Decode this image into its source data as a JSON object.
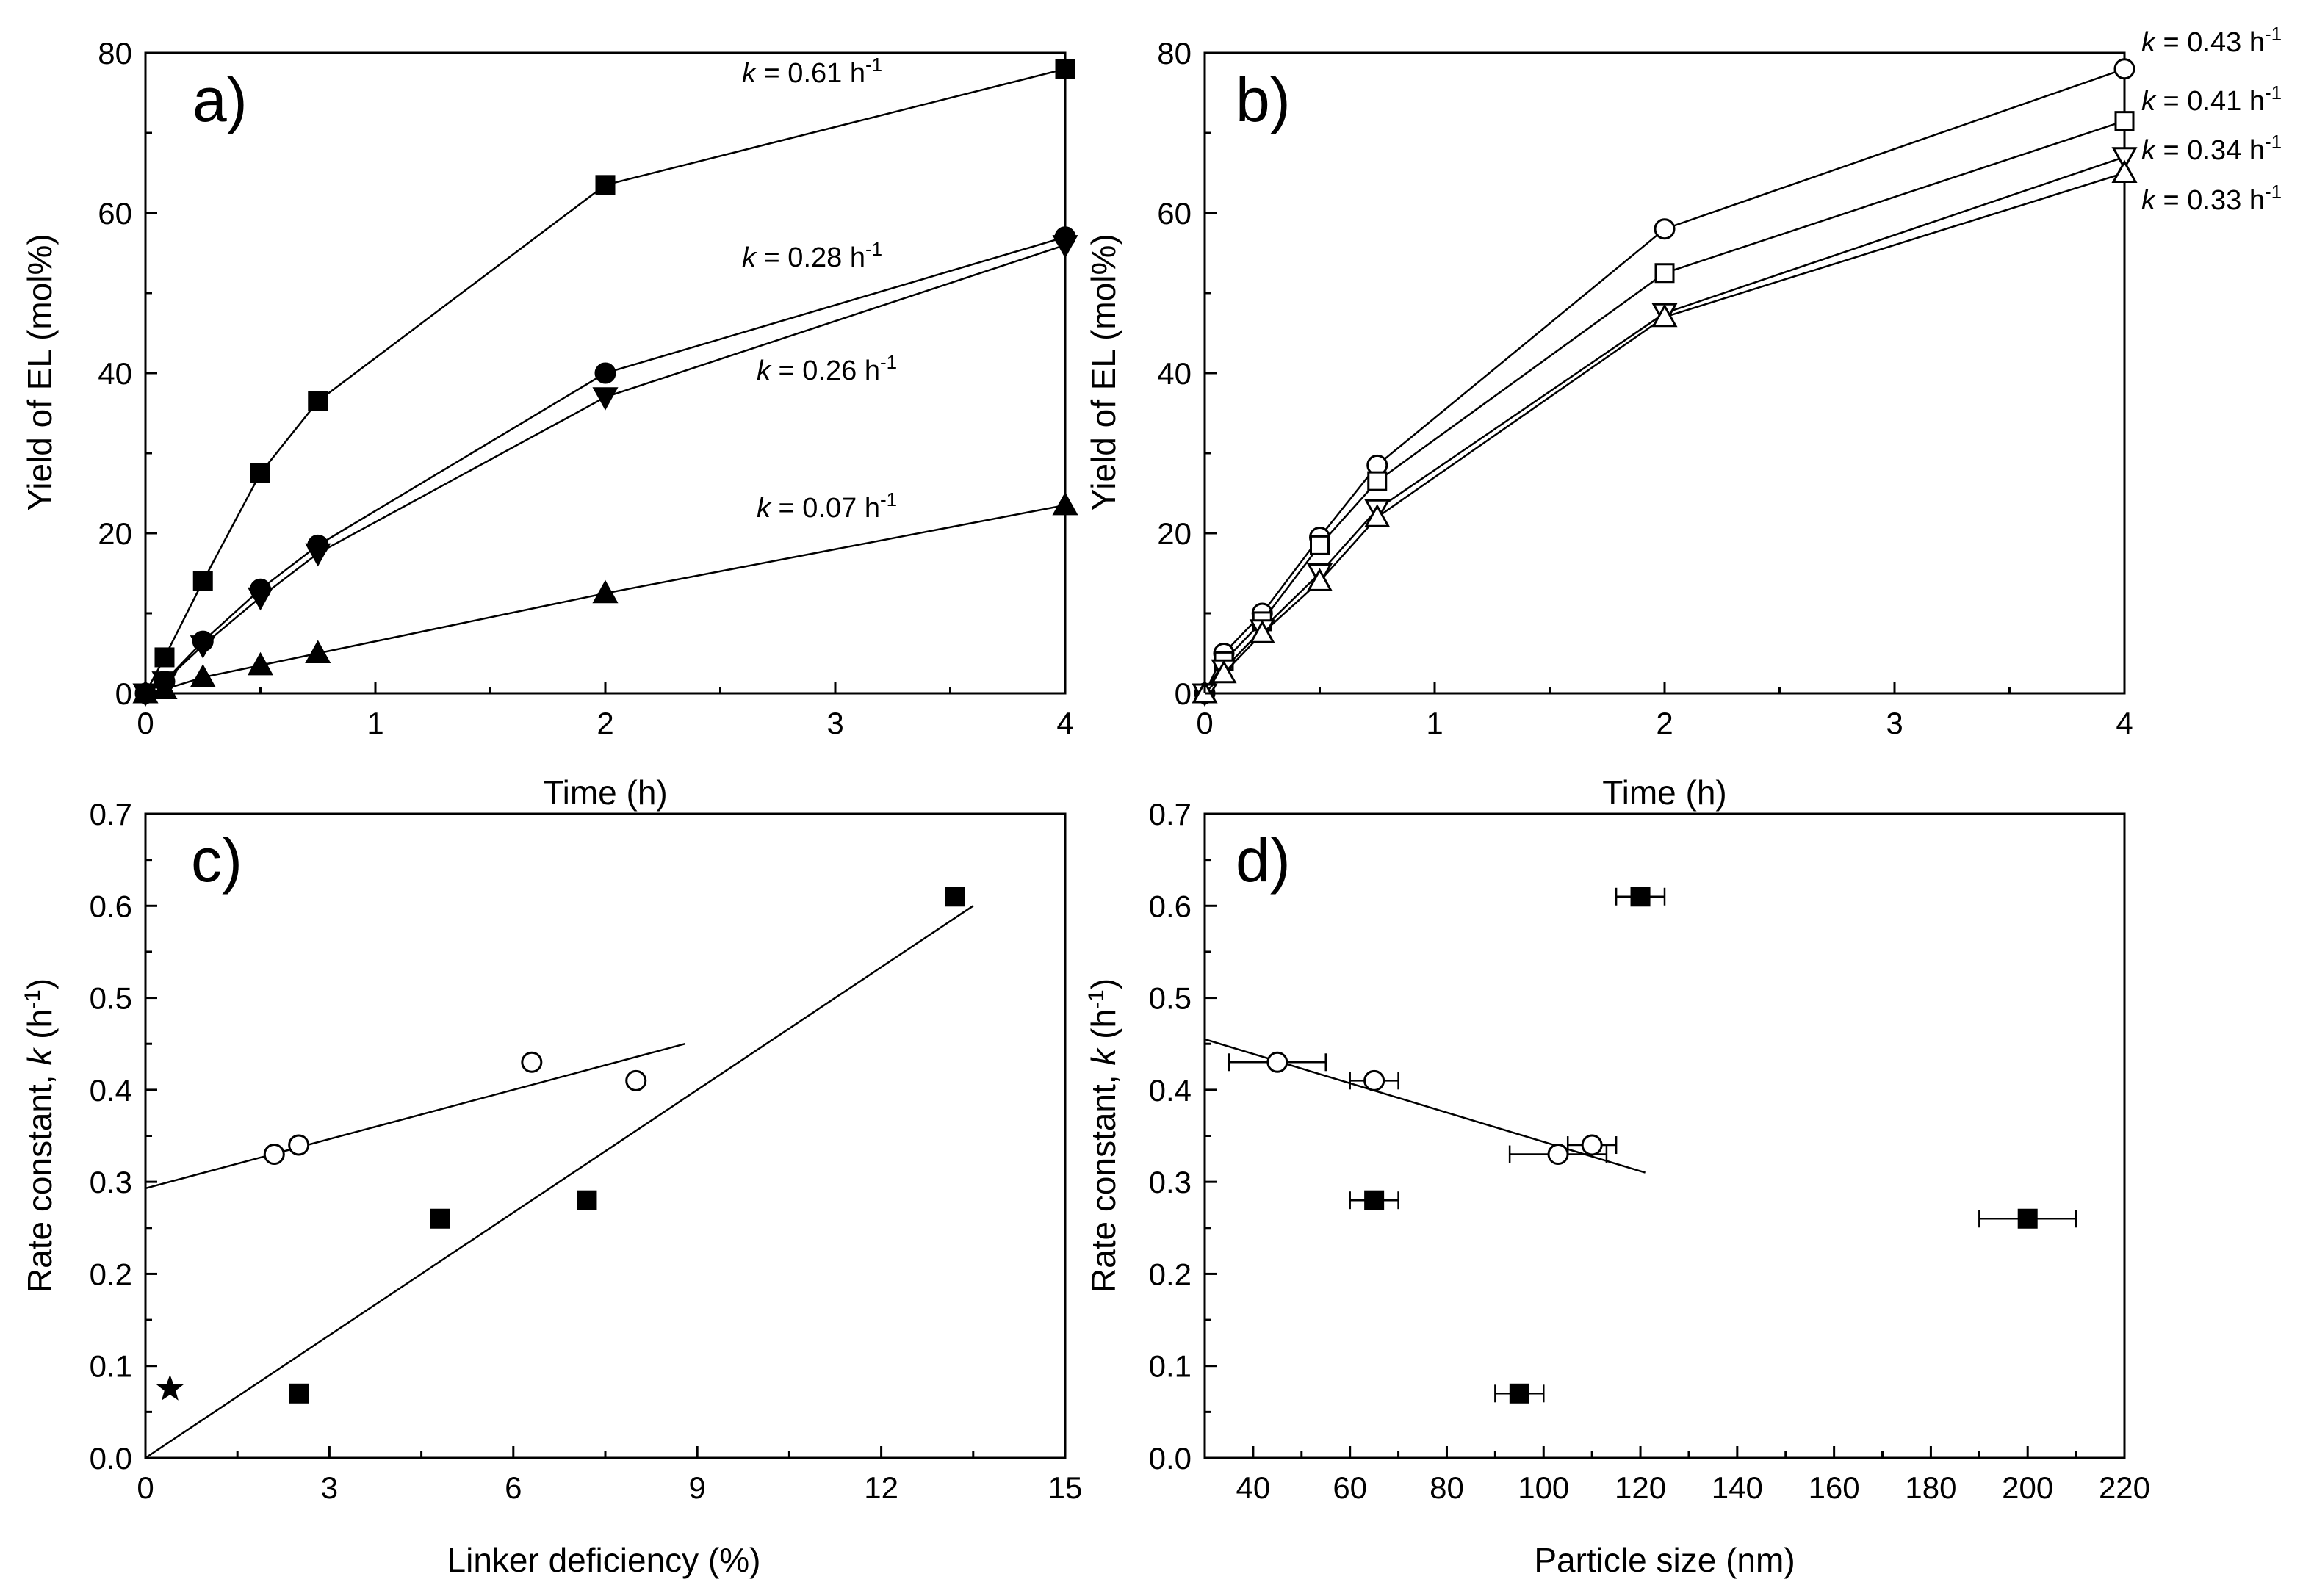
{
  "chart_data": [
    {
      "type": "line",
      "panel_label": "a)",
      "xlabel": "Time (h)",
      "ylabel": "Yield of EL (mol%)",
      "xlim": [
        0,
        4
      ],
      "ylim": [
        0,
        80
      ],
      "xticks": [
        "0",
        "1",
        "2",
        "3",
        "4"
      ],
      "yticks": [
        "0",
        "20",
        "40",
        "60",
        "80"
      ],
      "series": [
        {
          "marker": "filled-square",
          "k_label": "k = 0.61 h⁻¹",
          "x": [
            0,
            0.083,
            0.25,
            0.5,
            0.75,
            2,
            4
          ],
          "y": [
            0,
            4.5,
            14,
            27.5,
            36.5,
            63.5,
            78
          ]
        },
        {
          "marker": "filled-circle",
          "k_label": "k = 0.28 h⁻¹",
          "x": [
            0,
            0.083,
            0.25,
            0.5,
            0.75,
            2,
            4
          ],
          "y": [
            0,
            1.5,
            6.5,
            13,
            18.5,
            40,
            57
          ]
        },
        {
          "marker": "filled-triangle-down",
          "k_label": "k = 0.26 h⁻¹",
          "x": [
            0,
            0.083,
            0.25,
            0.5,
            0.75,
            2,
            4
          ],
          "y": [
            0,
            1.5,
            6,
            12,
            17.5,
            37,
            56
          ]
        },
        {
          "marker": "filled-triangle-up",
          "k_label": "k = 0.07 h⁻¹",
          "x": [
            0,
            0.083,
            0.25,
            0.5,
            0.75,
            2,
            4
          ],
          "y": [
            0,
            0.5,
            2,
            3.5,
            5,
            12.5,
            23.5
          ]
        }
      ]
    },
    {
      "type": "line",
      "panel_label": "b)",
      "xlabel": "Time (h)",
      "ylabel": "Yield of EL (mol%)",
      "xlim": [
        0,
        4
      ],
      "ylim": [
        0,
        80
      ],
      "xticks": [
        "0",
        "1",
        "2",
        "3",
        "4"
      ],
      "yticks": [
        "0",
        "20",
        "40",
        "60",
        "80"
      ],
      "series": [
        {
          "marker": "open-circle",
          "k_label": "k = 0.43 h⁻¹",
          "x": [
            0,
            0.083,
            0.25,
            0.5,
            0.75,
            2,
            4
          ],
          "y": [
            0,
            5,
            10,
            19.5,
            28.5,
            58,
            78
          ]
        },
        {
          "marker": "open-square",
          "k_label": "k = 0.41 h⁻¹",
          "x": [
            0,
            0.083,
            0.25,
            0.5,
            0.75,
            2,
            4
          ],
          "y": [
            0,
            4,
            9,
            18.5,
            26.5,
            52.5,
            71.5
          ]
        },
        {
          "marker": "open-triangle-down",
          "k_label": "k = 0.34 h⁻¹",
          "x": [
            0,
            0.083,
            0.25,
            0.5,
            0.75,
            2,
            4
          ],
          "y": [
            0,
            3,
            8,
            15,
            23,
            47.5,
            67
          ]
        },
        {
          "marker": "open-triangle-up",
          "k_label": "k = 0.33 h⁻¹",
          "x": [
            0,
            0.083,
            0.25,
            0.5,
            0.75,
            2,
            4
          ],
          "y": [
            0,
            2.5,
            7.5,
            14,
            22,
            47,
            65
          ]
        }
      ]
    },
    {
      "type": "scatter",
      "panel_label": "c)",
      "xlabel": "Linker deficiency (%)",
      "ylabel_prefix": "Rate constant, ",
      "ylabel_k": "k",
      "ylabel_unit": " (h",
      "ylabel_exp": "-1",
      "ylabel_close": ")",
      "xlim": [
        0,
        15
      ],
      "ylim": [
        0,
        0.7
      ],
      "xticks": [
        "0",
        "3",
        "6",
        "9",
        "12",
        "15"
      ],
      "yticks": [
        "0.0",
        "0.1",
        "0.2",
        "0.3",
        "0.4",
        "0.5",
        "0.6",
        "0.7"
      ],
      "series": [
        {
          "marker": "filled-square",
          "x": [
            2.5,
            4.8,
            7.2,
            13.2
          ],
          "y": [
            0.07,
            0.26,
            0.28,
            0.61
          ],
          "fit": {
            "x": [
              0,
              13.5
            ],
            "y": [
              0,
              0.6
            ]
          }
        },
        {
          "marker": "open-circle",
          "x": [
            2.1,
            2.5,
            6.3,
            8.0
          ],
          "y": [
            0.33,
            0.34,
            0.43,
            0.41
          ],
          "fit": {
            "x": [
              0,
              8.8
            ],
            "y": [
              0.293,
              0.45
            ]
          }
        },
        {
          "marker": "filled-star",
          "x": [
            0.4
          ],
          "y": [
            0.075
          ]
        }
      ]
    },
    {
      "type": "scatter",
      "panel_label": "d)",
      "xlabel": "Particle size (nm)",
      "ylabel_prefix": "Rate constant, ",
      "ylabel_k": "k",
      "ylabel_unit": " (h",
      "ylabel_exp": "-1",
      "ylabel_close": ")",
      "xlim": [
        30,
        220
      ],
      "ylim": [
        0,
        0.7
      ],
      "xticks": [
        "40",
        "60",
        "80",
        "100",
        "120",
        "140",
        "160",
        "180",
        "200",
        "220"
      ],
      "yticks": [
        "0.0",
        "0.1",
        "0.2",
        "0.3",
        "0.4",
        "0.5",
        "0.6",
        "0.7"
      ],
      "series": [
        {
          "marker": "filled-square",
          "x": [
            65,
            95,
            120,
            200
          ],
          "y": [
            0.28,
            0.07,
            0.61,
            0.26
          ],
          "xerr": [
            5,
            5,
            5,
            10
          ]
        },
        {
          "marker": "open-circle",
          "x": [
            45,
            65,
            103,
            110
          ],
          "y": [
            0.43,
            0.41,
            0.33,
            0.34
          ],
          "xerr": [
            10,
            5,
            10,
            5
          ],
          "fit": {
            "x": [
              30,
              121
            ],
            "y": [
              0.455,
              0.31
            ]
          }
        }
      ]
    }
  ]
}
